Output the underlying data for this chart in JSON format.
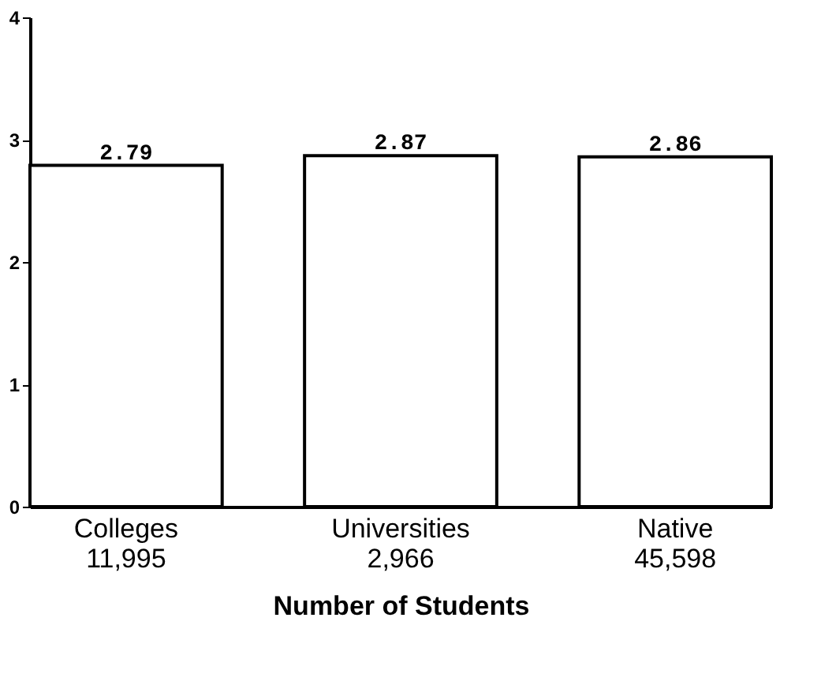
{
  "chart_data": {
    "type": "bar",
    "xlabel": "Number of Students",
    "categories": [
      "Colleges\n11,995",
      "Universities\n2,966",
      "Native\n45,598"
    ],
    "values": [
      2.79,
      2.87,
      2.86
    ],
    "color": "#ffffff",
    "ylim": [
      0,
      4
    ],
    "yticks": [
      0,
      1,
      2,
      3,
      4
    ],
    "grid": false,
    "data_labels": true
  }
}
